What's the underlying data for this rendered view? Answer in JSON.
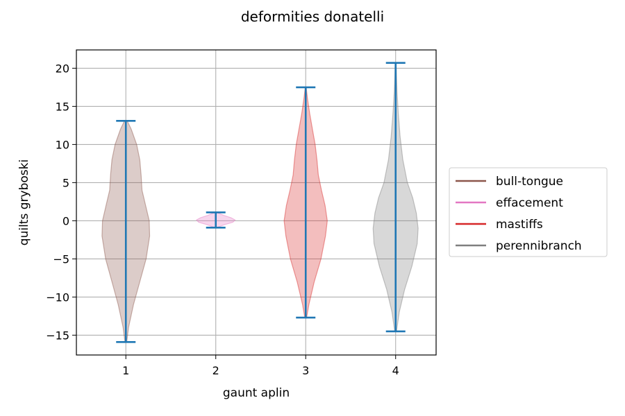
{
  "chart_data": {
    "type": "violin",
    "title": "deformities donatelli",
    "xlabel": "gaunt aplin",
    "ylabel": "quilts gryboski",
    "xlim": [
      0.45,
      4.45
    ],
    "ylim": [
      -17.6,
      22.4
    ],
    "x_ticks": [
      1,
      2,
      3,
      4
    ],
    "y_ticks": [
      -15,
      -10,
      -5,
      0,
      5,
      10,
      15,
      20
    ],
    "y_tick_labels": [
      "−15",
      "−10",
      "−5",
      "0",
      "5",
      "10",
      "15",
      "20"
    ],
    "grid": true,
    "legend_position": "right-outside",
    "whisker_color": "#1f77b4",
    "series": [
      {
        "name": "bull-tongue",
        "x": 1,
        "min": -15.9,
        "max": 13.1,
        "color": "#8c564b",
        "density_profile": [
          [
            -15.9,
            0.02
          ],
          [
            -14,
            0.06
          ],
          [
            -11,
            0.17
          ],
          [
            -8,
            0.31
          ],
          [
            -5,
            0.45
          ],
          [
            -2,
            0.53
          ],
          [
            0,
            0.52
          ],
          [
            2,
            0.44
          ],
          [
            4,
            0.36
          ],
          [
            6,
            0.34
          ],
          [
            8,
            0.31
          ],
          [
            10,
            0.24
          ],
          [
            12,
            0.12
          ],
          [
            13.1,
            0.03
          ]
        ]
      },
      {
        "name": "effacement",
        "x": 2,
        "min": -0.9,
        "max": 1.1,
        "color": "#e377c2",
        "density_profile": [
          [
            -0.9,
            0.02
          ],
          [
            -0.5,
            0.2
          ],
          [
            -0.2,
            0.38
          ],
          [
            0.1,
            0.43
          ],
          [
            0.4,
            0.34
          ],
          [
            0.7,
            0.18
          ],
          [
            1.1,
            0.02
          ]
        ]
      },
      {
        "name": "mastiffs",
        "x": 3,
        "min": -12.7,
        "max": 17.5,
        "color": "#d62728",
        "density_profile": [
          [
            -12.7,
            0.02
          ],
          [
            -11,
            0.07
          ],
          [
            -8,
            0.19
          ],
          [
            -5,
            0.34
          ],
          [
            -2,
            0.44
          ],
          [
            0,
            0.48
          ],
          [
            2,
            0.43
          ],
          [
            4,
            0.35
          ],
          [
            6,
            0.28
          ],
          [
            8,
            0.25
          ],
          [
            10,
            0.21
          ],
          [
            12,
            0.15
          ],
          [
            14,
            0.09
          ],
          [
            16,
            0.04
          ],
          [
            17.5,
            0.01
          ]
        ]
      },
      {
        "name": "perennibranch",
        "x": 4,
        "min": -14.5,
        "max": 20.7,
        "color": "#7f7f7f",
        "density_profile": [
          [
            -14.5,
            0.02
          ],
          [
            -12,
            0.08
          ],
          [
            -9,
            0.2
          ],
          [
            -6,
            0.36
          ],
          [
            -3,
            0.48
          ],
          [
            -1,
            0.5
          ],
          [
            1,
            0.46
          ],
          [
            3,
            0.38
          ],
          [
            5,
            0.26
          ],
          [
            8,
            0.16
          ],
          [
            11,
            0.1
          ],
          [
            14,
            0.06
          ],
          [
            17,
            0.03
          ],
          [
            20.7,
            0.01
          ]
        ]
      }
    ]
  }
}
